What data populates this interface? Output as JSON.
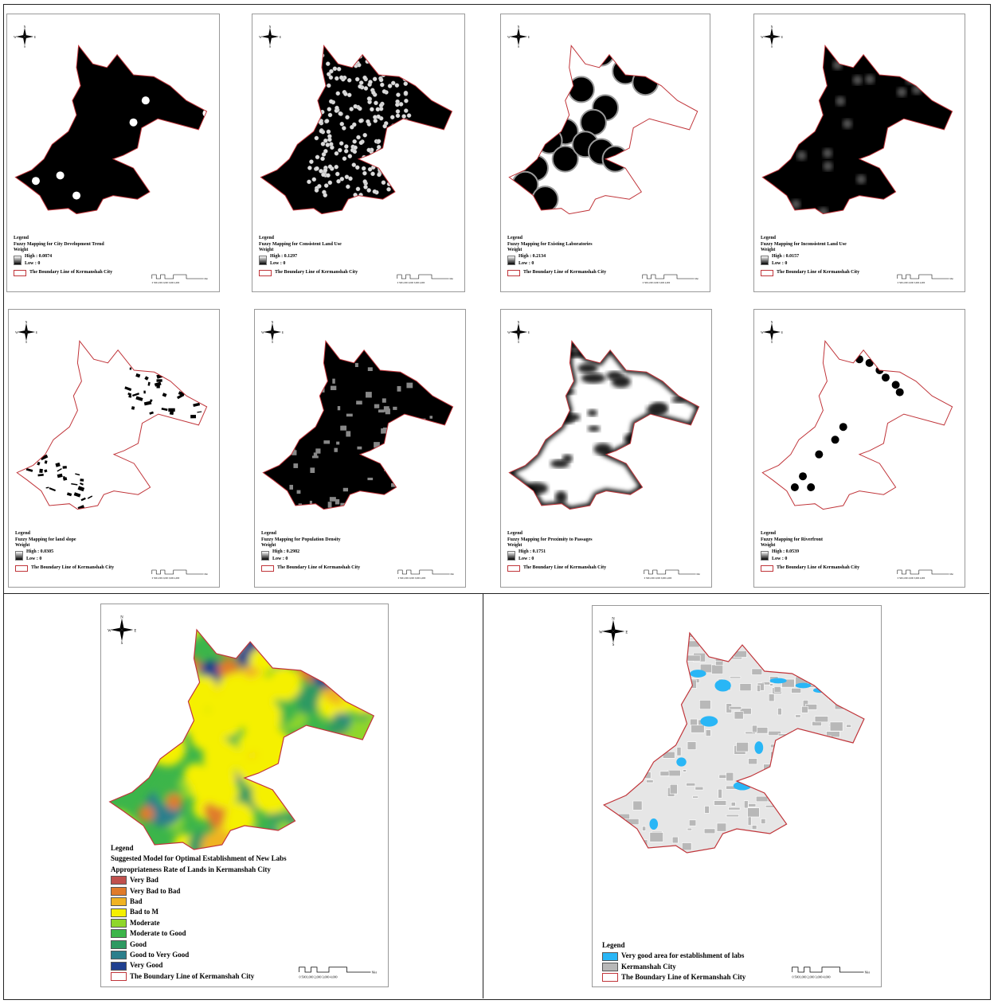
{
  "colors": {
    "boundary": "#c0353a",
    "fill_dark": "#000000",
    "gray": "#b8b8b8",
    "labs": "#29b6f6"
  },
  "small_maps": [
    {
      "title": "Fuzzy Mapping for City Development Trend",
      "high": "High : 0.0874"
    },
    {
      "title": "Fuzzy Mapping for Consistent Land Use",
      "high": "High : 0.1297"
    },
    {
      "title": "Fuzzy Mapping for Existing Laboratories",
      "high": "High : 0.2134"
    },
    {
      "title": "Fuzzy Mapping for Inconsistent Land Use",
      "high": "High : 0.0157"
    },
    {
      "title": "Fuzzy Mapping for land slope",
      "high": "High : 0.0305"
    },
    {
      "title": "Fuzzy Mapping for Population Density",
      "high": "High : 0.2982"
    },
    {
      "title": "Fuzzy Mapping for Proximity to Passages",
      "high": "High : 0.1751"
    },
    {
      "title": "Fuzzy Mapping for Riverfront",
      "high": "High : 0.0539"
    }
  ],
  "common": {
    "legend": "Legend",
    "weight": "Weight",
    "low": "Low : 0",
    "boundary": "The Boundary Line of Kermanshah City",
    "scale": "0 5001,000 2,000 3,000 4,000",
    "meters": "Meters",
    "n": "N",
    "s": "S",
    "e": "E",
    "w": "W"
  },
  "model_map": {
    "legend": "Legend",
    "title": "Suggested Model for Optimal Establishment of New Labs",
    "subtitle": "Appropriateness Rate of Lands in Kermanshah City",
    "classes": [
      {
        "label": "Very Bad",
        "color": "#c0504d"
      },
      {
        "label": "Very Bad to Bad",
        "color": "#e07b2a"
      },
      {
        "label": "Bad",
        "color": "#f0b323"
      },
      {
        "label": "Bad to M",
        "color": "#f5f000"
      },
      {
        "label": "Moderate",
        "color": "#8fd62a"
      },
      {
        "label": "Moderate to Good",
        "color": "#3cb54a"
      },
      {
        "label": "Good",
        "color": "#2e9a62"
      },
      {
        "label": "Good to Very Good",
        "color": "#2b7f8c"
      },
      {
        "label": "Very Good",
        "color": "#1f3f8f"
      }
    ],
    "boundary": "The Boundary Line of Kermanshah City"
  },
  "labs_map": {
    "legend": "Legend",
    "items": [
      {
        "label": "Very good area for establishment of labs",
        "color": "#29b6f6"
      },
      {
        "label": "Kermanshah City",
        "color": "#b8b8b8"
      }
    ],
    "boundary": "The Boundary Line of Kermanshah City"
  }
}
